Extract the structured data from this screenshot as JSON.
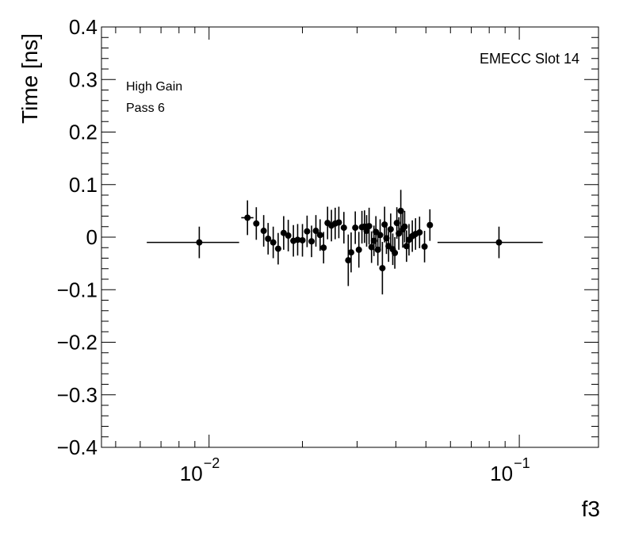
{
  "chart_data": {
    "type": "scatter",
    "x_scale": "log",
    "xlabel": "f3",
    "ylabel": "Time [ns]",
    "xlim": [
      0.0045,
      0.18
    ],
    "ylim": [
      -0.4,
      0.4
    ],
    "y_ticks": [
      "0.4",
      "0.3",
      "0.2",
      "0.1",
      "0",
      "−0.1",
      "−0.2",
      "−0.3",
      "−0.4"
    ],
    "x_tick_labels": [
      {
        "value": 0.01,
        "base": "10",
        "exp": "−2"
      },
      {
        "value": 0.1,
        "base": "10",
        "exp": "−1"
      }
    ],
    "annotations": {
      "top_right": "EMECC Slot 14",
      "gain": "High Gain",
      "pass": "Pass 6"
    },
    "series": [
      {
        "points": [
          {
            "x": 0.0093,
            "y": -0.01,
            "xlo": 0.0063,
            "xhi": 0.0125,
            "yerr": 0.03
          },
          {
            "x": 0.0133,
            "y": 0.037,
            "xlo": 0.0127,
            "xhi": 0.0139,
            "yerr": 0.033
          },
          {
            "x": 0.0142,
            "y": 0.026,
            "xlo": 0.0139,
            "xhi": 0.0145,
            "yerr": 0.031
          },
          {
            "x": 0.015,
            "y": 0.012,
            "xlo": 0.0147,
            "xhi": 0.0153,
            "yerr": 0.03
          },
          {
            "x": 0.0155,
            "y": -0.003,
            "xlo": 0.0153,
            "xhi": 0.0157,
            "yerr": 0.03
          },
          {
            "x": 0.0161,
            "y": -0.01,
            "xlo": 0.0159,
            "xhi": 0.0163,
            "yerr": 0.03
          },
          {
            "x": 0.0167,
            "y": -0.022,
            "xlo": 0.0165,
            "xhi": 0.0169,
            "yerr": 0.03
          },
          {
            "x": 0.0174,
            "y": 0.008,
            "xlo": 0.0172,
            "xhi": 0.0176,
            "yerr": 0.032
          },
          {
            "x": 0.018,
            "y": 0.003,
            "xlo": 0.0178,
            "xhi": 0.0182,
            "yerr": 0.03
          },
          {
            "x": 0.0187,
            "y": -0.007,
            "xlo": 0.0185,
            "xhi": 0.0189,
            "yerr": 0.03
          },
          {
            "x": 0.0193,
            "y": -0.005,
            "xlo": 0.0191,
            "xhi": 0.0195,
            "yerr": 0.03
          },
          {
            "x": 0.02,
            "y": -0.006,
            "xlo": 0.0198,
            "xhi": 0.0202,
            "yerr": 0.031
          },
          {
            "x": 0.0207,
            "y": 0.011,
            "xlo": 0.0205,
            "xhi": 0.0209,
            "yerr": 0.03
          },
          {
            "x": 0.0214,
            "y": -0.008,
            "xlo": 0.0212,
            "xhi": 0.0216,
            "yerr": 0.03
          },
          {
            "x": 0.0221,
            "y": 0.012,
            "xlo": 0.0219,
            "xhi": 0.0223,
            "yerr": 0.03
          },
          {
            "x": 0.0228,
            "y": 0.004,
            "xlo": 0.0226,
            "xhi": 0.023,
            "yerr": 0.03
          },
          {
            "x": 0.0234,
            "y": -0.02,
            "xlo": 0.0232,
            "xhi": 0.0236,
            "yerr": 0.03
          },
          {
            "x": 0.0241,
            "y": 0.027,
            "xlo": 0.0239,
            "xhi": 0.0243,
            "yerr": 0.031
          },
          {
            "x": 0.0248,
            "y": 0.022,
            "xlo": 0.0246,
            "xhi": 0.025,
            "yerr": 0.03
          },
          {
            "x": 0.0255,
            "y": 0.026,
            "xlo": 0.0253,
            "xhi": 0.0257,
            "yerr": 0.03
          },
          {
            "x": 0.0262,
            "y": 0.028,
            "xlo": 0.026,
            "xhi": 0.0264,
            "yerr": 0.03
          },
          {
            "x": 0.0272,
            "y": 0.018,
            "xlo": 0.027,
            "xhi": 0.0274,
            "yerr": 0.03
          },
          {
            "x": 0.0281,
            "y": -0.044,
            "xlo": 0.0279,
            "xhi": 0.0283,
            "yerr": 0.049
          },
          {
            "x": 0.0287,
            "y": -0.029,
            "xlo": 0.0285,
            "xhi": 0.0289,
            "yerr": 0.038
          },
          {
            "x": 0.0296,
            "y": 0.018,
            "xlo": 0.0294,
            "xhi": 0.0298,
            "yerr": 0.031
          },
          {
            "x": 0.0304,
            "y": -0.024,
            "xlo": 0.0302,
            "xhi": 0.0306,
            "yerr": 0.034
          },
          {
            "x": 0.0311,
            "y": 0.019,
            "xlo": 0.0309,
            "xhi": 0.0313,
            "yerr": 0.031
          },
          {
            "x": 0.0317,
            "y": 0.02,
            "xlo": 0.0315,
            "xhi": 0.0319,
            "yerr": 0.031
          },
          {
            "x": 0.0322,
            "y": 0.012,
            "xlo": 0.032,
            "xhi": 0.0324,
            "yerr": 0.03
          },
          {
            "x": 0.0328,
            "y": 0.021,
            "xlo": 0.0326,
            "xhi": 0.033,
            "yerr": 0.035
          },
          {
            "x": 0.0334,
            "y": -0.019,
            "xlo": 0.0332,
            "xhi": 0.0336,
            "yerr": 0.03
          },
          {
            "x": 0.034,
            "y": -0.007,
            "xlo": 0.0338,
            "xhi": 0.0342,
            "yerr": 0.029
          },
          {
            "x": 0.0345,
            "y": 0.01,
            "xlo": 0.0343,
            "xhi": 0.0347,
            "yerr": 0.03
          },
          {
            "x": 0.035,
            "y": -0.024,
            "xlo": 0.0348,
            "xhi": 0.0352,
            "yerr": 0.03
          },
          {
            "x": 0.0356,
            "y": 0.004,
            "xlo": 0.0354,
            "xhi": 0.0358,
            "yerr": 0.03
          },
          {
            "x": 0.0362,
            "y": -0.059,
            "xlo": 0.036,
            "xhi": 0.0364,
            "yerr": 0.05
          },
          {
            "x": 0.0368,
            "y": 0.024,
            "xlo": 0.0366,
            "xhi": 0.037,
            "yerr": 0.034
          },
          {
            "x": 0.0373,
            "y": -0.002,
            "xlo": 0.0371,
            "xhi": 0.0375,
            "yerr": 0.03
          },
          {
            "x": 0.0379,
            "y": -0.017,
            "xlo": 0.0377,
            "xhi": 0.0381,
            "yerr": 0.03
          },
          {
            "x": 0.0385,
            "y": 0.015,
            "xlo": 0.0383,
            "xhi": 0.0387,
            "yerr": 0.03
          },
          {
            "x": 0.0391,
            "y": -0.023,
            "xlo": 0.0389,
            "xhi": 0.0393,
            "yerr": 0.03
          },
          {
            "x": 0.0397,
            "y": -0.03,
            "xlo": 0.0395,
            "xhi": 0.0399,
            "yerr": 0.03
          },
          {
            "x": 0.0403,
            "y": 0.027,
            "xlo": 0.0401,
            "xhi": 0.0405,
            "yerr": 0.03
          },
          {
            "x": 0.0409,
            "y": 0.007,
            "xlo": 0.0407,
            "xhi": 0.0411,
            "yerr": 0.031
          },
          {
            "x": 0.0415,
            "y": 0.05,
            "xlo": 0.0413,
            "xhi": 0.0417,
            "yerr": 0.04
          },
          {
            "x": 0.0421,
            "y": 0.015,
            "xlo": 0.0419,
            "xhi": 0.0423,
            "yerr": 0.035
          },
          {
            "x": 0.0427,
            "y": 0.02,
            "xlo": 0.0425,
            "xhi": 0.0429,
            "yerr": 0.03
          },
          {
            "x": 0.0433,
            "y": -0.017,
            "xlo": 0.0431,
            "xhi": 0.0435,
            "yerr": 0.03
          },
          {
            "x": 0.0441,
            "y": -0.005,
            "xlo": 0.0439,
            "xhi": 0.0443,
            "yerr": 0.03
          },
          {
            "x": 0.0452,
            "y": 0.002,
            "xlo": 0.045,
            "xhi": 0.0454,
            "yerr": 0.03
          },
          {
            "x": 0.0463,
            "y": 0.006,
            "xlo": 0.0461,
            "xhi": 0.0465,
            "yerr": 0.03
          },
          {
            "x": 0.0477,
            "y": 0.009,
            "xlo": 0.0475,
            "xhi": 0.0479,
            "yerr": 0.03
          },
          {
            "x": 0.0495,
            "y": -0.018,
            "xlo": 0.0493,
            "xhi": 0.0497,
            "yerr": 0.03
          },
          {
            "x": 0.0515,
            "y": 0.023,
            "xlo": 0.0513,
            "xhi": 0.0517,
            "yerr": 0.03
          },
          {
            "x": 0.086,
            "y": -0.01,
            "xlo": 0.0545,
            "xhi": 0.119,
            "yerr": 0.03
          }
        ]
      }
    ]
  }
}
